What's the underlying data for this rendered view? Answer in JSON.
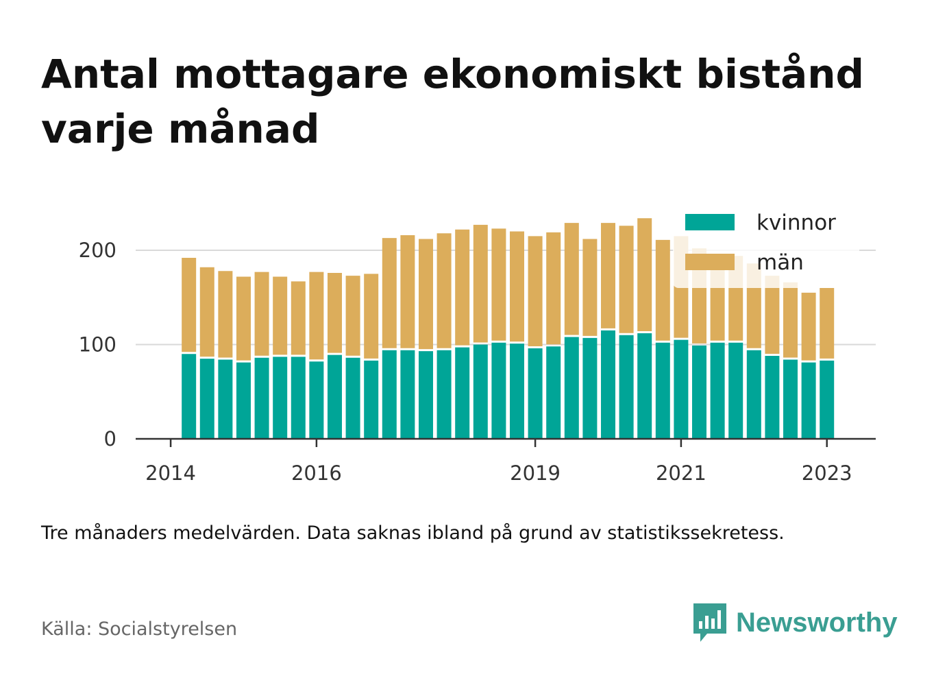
{
  "title": "Antal mottagare ekonomiskt bistånd varje månad",
  "note": "Tre månaders medelvärden. Data saknas ibland på grund av statistikssekretess.",
  "source": "Källa: Socialstyrelsen",
  "brand": "Newsworthy",
  "colors": {
    "kvinnor": "#00a597",
    "man": "#dcad5b",
    "brand": "#3a9e92"
  },
  "chart_data": {
    "type": "bar",
    "stacked": true,
    "x_ticks": [
      {
        "label": "2014",
        "x": 2014.0
      },
      {
        "label": "2016",
        "x": 2016.0
      },
      {
        "label": "2019",
        "x": 2019.0
      },
      {
        "label": "2021",
        "x": 2021.0
      },
      {
        "label": "2023",
        "x": 2023.0
      }
    ],
    "y_ticks": [
      "0",
      "100",
      "200"
    ],
    "ylim": [
      0,
      240
    ],
    "xlim": [
      2013.52,
      2023.67
    ],
    "grid": true,
    "legend_position": "top-right",
    "legend": [
      "kvinnor",
      "män"
    ],
    "x": [
      2014.25,
      2014.5,
      2014.75,
      2015.0,
      2015.25,
      2015.5,
      2015.75,
      2016.0,
      2016.25,
      2016.5,
      2016.75,
      2017.0,
      2017.25,
      2017.5,
      2017.75,
      2018.0,
      2018.25,
      2018.5,
      2018.75,
      2019.0,
      2019.25,
      2019.5,
      2019.75,
      2020.0,
      2020.25,
      2020.5,
      2020.75,
      2021.0,
      2021.25,
      2021.5,
      2021.75,
      2022.0,
      2022.25,
      2022.5,
      2022.75,
      2023.0
    ],
    "series": [
      {
        "name": "kvinnor",
        "values": [
          90,
          85,
          84,
          81,
          86,
          87,
          87,
          82,
          89,
          86,
          83,
          94,
          94,
          93,
          94,
          97,
          100,
          102,
          101,
          96,
          98,
          108,
          107,
          115,
          110,
          112,
          102,
          105,
          99,
          102,
          102,
          94,
          88,
          84,
          81,
          83
        ]
      },
      {
        "name": "män",
        "values": [
          102,
          97,
          94,
          91,
          91,
          85,
          80,
          95,
          87,
          87,
          92,
          119,
          122,
          119,
          124,
          125,
          127,
          121,
          119,
          119,
          121,
          121,
          105,
          114,
          116,
          122,
          109,
          110,
          103,
          93,
          92,
          92,
          85,
          82,
          74,
          77
        ]
      }
    ]
  }
}
